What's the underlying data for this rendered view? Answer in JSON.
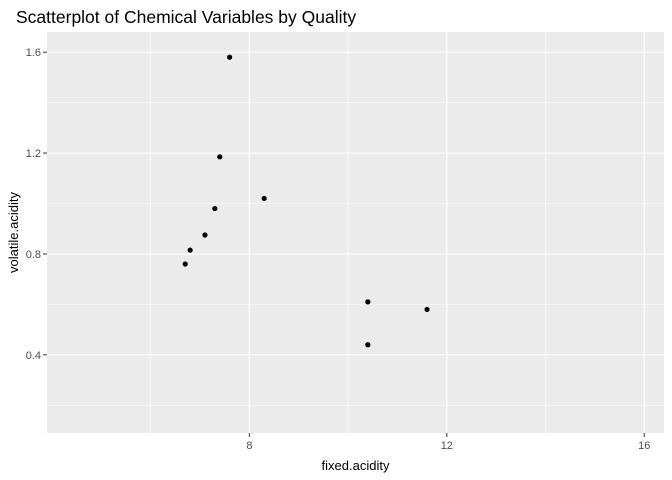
{
  "chart_data": {
    "type": "scatter",
    "title": "Scatterplot of Chemical Variables by Quality",
    "xlabel": "fixed.acidity",
    "ylabel": "volatile.acidity",
    "xlim": [
      3.9,
      16.4
    ],
    "ylim": [
      0.09,
      1.68
    ],
    "x_ticks": [
      8,
      12,
      16
    ],
    "x_tick_labels": [
      "8",
      "12",
      "16"
    ],
    "x_minor_ticks": [
      6,
      10,
      14
    ],
    "y_ticks": [
      0.4,
      0.8,
      1.2,
      1.6
    ],
    "y_tick_labels": [
      "0.4",
      "0.8",
      "1.2",
      "1.6"
    ],
    "y_minor_ticks": [
      0.2,
      0.6,
      1.0,
      1.4
    ],
    "grid": true,
    "panel_background": "#ebebeb",
    "grid_color": "#ffffff",
    "point_color": "#000000",
    "points": [
      {
        "x": 7.6,
        "y": 1.58
      },
      {
        "x": 7.4,
        "y": 1.185
      },
      {
        "x": 8.3,
        "y": 1.02
      },
      {
        "x": 7.3,
        "y": 0.98
      },
      {
        "x": 7.1,
        "y": 0.875
      },
      {
        "x": 6.8,
        "y": 0.815
      },
      {
        "x": 6.7,
        "y": 0.76
      },
      {
        "x": 10.4,
        "y": 0.61
      },
      {
        "x": 11.6,
        "y": 0.58
      },
      {
        "x": 10.4,
        "y": 0.44
      }
    ]
  }
}
